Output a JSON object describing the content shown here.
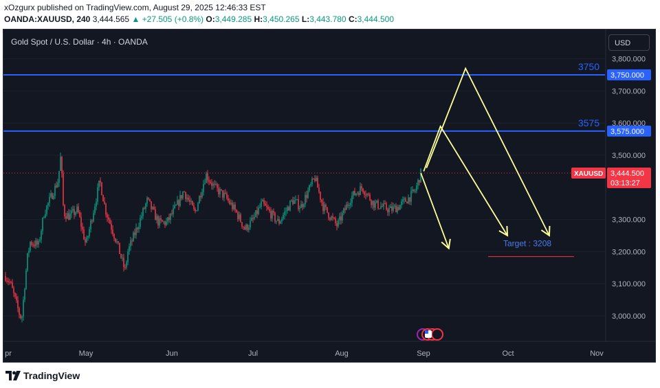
{
  "header": {
    "publisher": "xOzgurx published on TradingView.com, August 29, 2025 12:46:33 EST",
    "symbol": "OANDA:XAUUSD, 240",
    "price": "3,444.565",
    "change": "▲ +27.505 (+0.8%)",
    "o_label": "O:",
    "o_value": "3,449.285",
    "h_label": "H:",
    "h_value": "3,450.265",
    "l_label": "L:",
    "l_value": "3,443.780",
    "c_label": "C:",
    "c_value": "3,444.500"
  },
  "chart_title": "Gold Spot / U.S. Dollar · 4h · OANDA",
  "currency_button": "USD",
  "footer": {
    "logo_text": "TradingView"
  },
  "colors": {
    "background": "#131722",
    "up": "#089981",
    "down": "#f23645",
    "level": "#2962ff",
    "arrow": "#ffff99",
    "target": "#4c7cf0"
  },
  "chart_data": {
    "type": "candlestick",
    "x_tick_labels": [
      "pr",
      "May",
      "Jun",
      "Jul",
      "Aug",
      "Sep",
      "Oct",
      "Nov"
    ],
    "y_tick_labels": [
      "3,800.000",
      "3,700.000",
      "3,600.000",
      "3,500.000",
      "3,300.000",
      "3,200.000",
      "3,100.000",
      "3,000.000"
    ],
    "ylim": [
      2940,
      3850
    ],
    "levels": [
      {
        "label": "3750",
        "value": 3750,
        "axis_label": "3,750.000"
      },
      {
        "label": "3575",
        "value": 3575,
        "axis_label": "3,575.000"
      }
    ],
    "price_marker": {
      "symbol": "XAUUSD",
      "value": 3444.5,
      "label": "3,444.500",
      "countdown": "03:13:27"
    },
    "target": {
      "text": "Target : 3208",
      "value": 3208
    },
    "price_path": [
      {
        "t": "Apr 1",
        "v": 3140
      },
      {
        "t": "Apr 4",
        "v": 3100
      },
      {
        "t": "Apr 7",
        "v": 3010
      },
      {
        "t": "Apr 8",
        "v": 2990
      },
      {
        "t": "Apr 9",
        "v": 3090
      },
      {
        "t": "Apr 10",
        "v": 3180
      },
      {
        "t": "Apr 11",
        "v": 3230
      },
      {
        "t": "Apr 14",
        "v": 3220
      },
      {
        "t": "Apr 16",
        "v": 3320
      },
      {
        "t": "Apr 17",
        "v": 3340
      },
      {
        "t": "Apr 21",
        "v": 3420
      },
      {
        "t": "Apr 22",
        "v": 3500
      },
      {
        "t": "Apr 23",
        "v": 3320
      },
      {
        "t": "Apr 25",
        "v": 3310
      },
      {
        "t": "Apr 28",
        "v": 3330
      },
      {
        "t": "May 1",
        "v": 3220
      },
      {
        "t": "May 6",
        "v": 3420
      },
      {
        "t": "May 8",
        "v": 3330
      },
      {
        "t": "May 12",
        "v": 3230
      },
      {
        "t": "May 15",
        "v": 3140
      },
      {
        "t": "May 16",
        "v": 3200
      },
      {
        "t": "May 20",
        "v": 3290
      },
      {
        "t": "May 23",
        "v": 3360
      },
      {
        "t": "May 27",
        "v": 3290
      },
      {
        "t": "May 30",
        "v": 3290
      },
      {
        "t": "Jun 3",
        "v": 3350
      },
      {
        "t": "Jun 5",
        "v": 3390
      },
      {
        "t": "Jun 9",
        "v": 3320
      },
      {
        "t": "Jun 13",
        "v": 3440
      },
      {
        "t": "Jun 16",
        "v": 3400
      },
      {
        "t": "Jun 20",
        "v": 3370
      },
      {
        "t": "Jun 24",
        "v": 3320
      },
      {
        "t": "Jun 27",
        "v": 3270
      },
      {
        "t": "Jun 30",
        "v": 3300
      },
      {
        "t": "Jul 3",
        "v": 3350
      },
      {
        "t": "Jul 9",
        "v": 3290
      },
      {
        "t": "Jul 14",
        "v": 3360
      },
      {
        "t": "Jul 17",
        "v": 3340
      },
      {
        "t": "Jul 22",
        "v": 3430
      },
      {
        "t": "Jul 25",
        "v": 3340
      },
      {
        "t": "Jul 30",
        "v": 3280
      },
      {
        "t": "Aug 4",
        "v": 3370
      },
      {
        "t": "Aug 8",
        "v": 3400
      },
      {
        "t": "Aug 12",
        "v": 3350
      },
      {
        "t": "Aug 18",
        "v": 3330
      },
      {
        "t": "Aug 21",
        "v": 3340
      },
      {
        "t": "Aug 25",
        "v": 3370
      },
      {
        "t": "Aug 27",
        "v": 3390
      },
      {
        "t": "Aug 29",
        "v": 3444
      }
    ],
    "projections": [
      {
        "name": "path-a",
        "points": [
          {
            "t": "Aug 29",
            "v": 3444
          },
          {
            "t": "Sep 8",
            "v": 3210
          }
        ]
      },
      {
        "name": "path-b",
        "points": [
          {
            "t": "Aug 30",
            "v": 3450
          },
          {
            "t": "Sep 5",
            "v": 3590
          },
          {
            "t": "Sep 29",
            "v": 3250
          }
        ]
      },
      {
        "name": "path-c",
        "points": [
          {
            "t": "Aug 31",
            "v": 3460
          },
          {
            "t": "Sep 14",
            "v": 3770
          },
          {
            "t": "Oct 14",
            "v": 3250
          }
        ]
      }
    ]
  }
}
